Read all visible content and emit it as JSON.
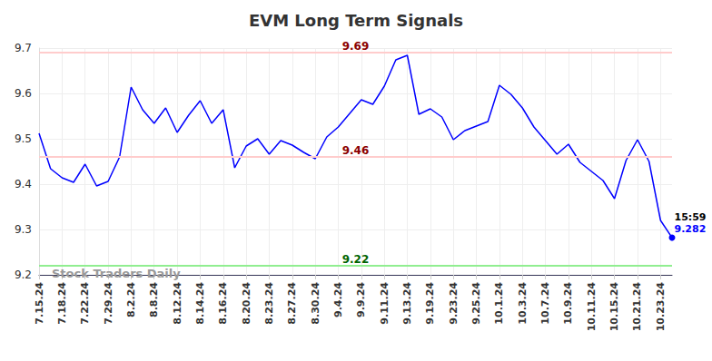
{
  "chart_data": {
    "type": "line",
    "title": "EVM Long Term Signals",
    "categories": [
      "7.15.24",
      null,
      "7.18.24",
      null,
      "7.22.24",
      null,
      "7.29.24",
      null,
      "8.2.24",
      null,
      "8.8.24",
      null,
      "8.12.24",
      null,
      "8.14.24",
      null,
      "8.16.24",
      null,
      "8.20.24",
      null,
      "8.23.24",
      null,
      "8.27.24",
      null,
      "8.30.24",
      null,
      "9.4.24",
      null,
      "9.9.24",
      null,
      "9.11.24",
      null,
      "9.13.24",
      null,
      "9.19.24",
      null,
      "9.23.24",
      null,
      "9.25.24",
      null,
      "10.1.24",
      null,
      "10.3.24",
      null,
      "10.7.24",
      null,
      "10.9.24",
      null,
      "10.11.24",
      null,
      "10.15.24",
      null,
      "10.21.24",
      null,
      "10.23.24",
      null
    ],
    "values": [
      9.512,
      9.434,
      9.414,
      9.404,
      9.444,
      9.396,
      9.406,
      9.46,
      9.614,
      9.564,
      9.534,
      9.568,
      9.514,
      9.552,
      9.584,
      9.534,
      9.564,
      9.436,
      9.484,
      9.5,
      9.466,
      9.496,
      9.486,
      9.47,
      9.456,
      9.504,
      9.526,
      9.556,
      9.586,
      9.576,
      9.616,
      9.674,
      9.684,
      9.554,
      9.566,
      9.548,
      9.498,
      9.518,
      9.528,
      9.538,
      9.618,
      9.598,
      9.568,
      9.526,
      9.496,
      9.466,
      9.488,
      9.448,
      9.428,
      9.408,
      9.368,
      9.452,
      9.498,
      9.45,
      9.32,
      9.282
    ],
    "color": "#0000ff",
    "ylim": [
      9.2,
      9.7
    ],
    "yticks": [
      9.2,
      9.3,
      9.4,
      9.5,
      9.6,
      9.7
    ],
    "grid": true,
    "reference_lines": [
      {
        "value": 9.69,
        "label": "9.69",
        "color": "#ffcccc",
        "label_color": "#8b0000"
      },
      {
        "value": 9.46,
        "label": "9.46",
        "color": "#ffcccc",
        "label_color": "#8b0000"
      },
      {
        "value": 9.22,
        "label": "9.22",
        "color": "#90ee90",
        "label_color": "#006400"
      }
    ],
    "last_point_annotation": "15:59",
    "watermark": "Stock Traders Daily"
  }
}
